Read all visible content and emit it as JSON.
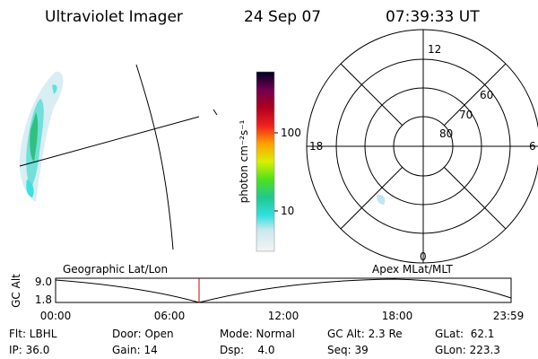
{
  "header": {
    "title": "Ultraviolet Imager",
    "date": "24 Sep 07",
    "time": "07:39:33 UT"
  },
  "colorbar": {
    "label": "photon cm⁻²s⁻¹",
    "ticks": [
      "100",
      "10"
    ]
  },
  "polar": {
    "mlt_labels": [
      "12",
      "18",
      "6",
      "0"
    ],
    "lat_labels": [
      "60",
      "70",
      "80"
    ]
  },
  "timeline": {
    "axis_label": "GC Alt",
    "yticks": [
      "9.0",
      "1.8"
    ],
    "left_title": "Geographic Lat/Lon",
    "right_title": "Apex MLat/MLT",
    "xticks": [
      "00:00",
      "06:00",
      "12:00",
      "18:00",
      "23:59"
    ]
  },
  "footer": {
    "rows": [
      [
        "Flt: LBHL",
        "Door: Open",
        "Mode: Normal",
        "GC Alt: 2.3 Re",
        "GLat:  62.1"
      ],
      [
        "IP: 36.0",
        "Gain: 14",
        "Dsp:    4.0",
        "Seq: 39",
        "GLon: 223.3"
      ]
    ]
  }
}
